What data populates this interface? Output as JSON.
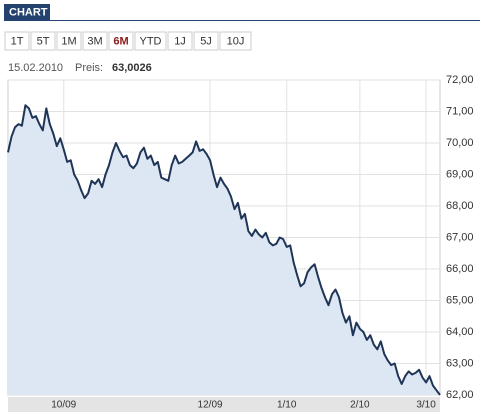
{
  "header": "CHART",
  "buttons": [
    "1T",
    "5T",
    "1M",
    "3M",
    "6M",
    "YTD",
    "1J",
    "5J",
    "10J"
  ],
  "selected_button": 4,
  "info": {
    "date": "15.02.2010",
    "price_label": "Preis:",
    "price": "63,0026"
  },
  "chart_data": {
    "type": "area",
    "color": "#1f3557",
    "fill": "#dde6f3",
    "categories": [
      null,
      null,
      null,
      null,
      null,
      null,
      null,
      null,
      null,
      null,
      null,
      null,
      null,
      null,
      null,
      null,
      "10/09",
      null,
      null,
      null,
      null,
      null,
      null,
      null,
      null,
      null,
      null,
      null,
      null,
      null,
      null,
      null,
      null,
      null,
      null,
      null,
      null,
      null,
      null,
      null,
      null,
      null,
      null,
      null,
      null,
      null,
      null,
      null,
      null,
      null,
      null,
      null,
      null,
      null,
      null,
      null,
      null,
      null,
      "12/09",
      null,
      null,
      null,
      null,
      null,
      null,
      null,
      null,
      null,
      null,
      null,
      null,
      null,
      null,
      null,
      null,
      null,
      null,
      null,
      null,
      null,
      "1/10",
      null,
      null,
      null,
      null,
      null,
      null,
      null,
      null,
      null,
      null,
      null,
      null,
      null,
      null,
      null,
      null,
      null,
      null,
      null,
      null,
      "2/10",
      null,
      null,
      null,
      null,
      null,
      null,
      null,
      null,
      null,
      null,
      null,
      null,
      null,
      null,
      null,
      null,
      null,
      null,
      "3/10",
      null,
      null,
      null,
      null
    ],
    "values": [
      69.7,
      70.2,
      70.5,
      70.6,
      70.55,
      71.2,
      71.1,
      70.8,
      70.85,
      70.6,
      70.4,
      71.1,
      70.6,
      70.3,
      69.9,
      70.15,
      69.8,
      69.4,
      69.45,
      69.0,
      68.8,
      68.5,
      68.25,
      68.4,
      68.8,
      68.7,
      68.85,
      68.6,
      69.0,
      69.3,
      69.7,
      70.0,
      69.75,
      69.55,
      69.6,
      69.3,
      69.2,
      69.35,
      69.7,
      69.85,
      69.5,
      69.6,
      69.3,
      69.4,
      68.9,
      68.85,
      68.8,
      69.3,
      69.6,
      69.35,
      69.4,
      69.5,
      69.6,
      69.7,
      70.05,
      69.75,
      69.8,
      69.65,
      69.45,
      69.0,
      68.6,
      68.9,
      68.7,
      68.55,
      68.3,
      67.9,
      68.1,
      67.6,
      67.75,
      67.2,
      67.05,
      67.25,
      67.1,
      67.0,
      67.15,
      66.85,
      66.75,
      66.8,
      67.0,
      66.95,
      66.7,
      66.75,
      66.2,
      65.8,
      65.45,
      65.55,
      65.9,
      66.05,
      66.15,
      65.75,
      65.4,
      65.1,
      64.85,
      65.2,
      65.35,
      65.1,
      64.6,
      64.3,
      64.5,
      63.9,
      64.3,
      64.1,
      64.0,
      63.75,
      63.9,
      63.6,
      63.45,
      63.7,
      63.3,
      63.1,
      62.95,
      63.0,
      62.6,
      62.35,
      62.6,
      62.75,
      62.65,
      62.7,
      62.8,
      62.55,
      62.4,
      62.6,
      62.3,
      62.15,
      62.0
    ],
    "ylim": [
      62,
      72
    ],
    "yticks": [
      {
        "value": 62,
        "label": "62,00"
      },
      {
        "value": 63,
        "label": "63,00"
      },
      {
        "value": 64,
        "label": "64,00"
      },
      {
        "value": 65,
        "label": "65,00"
      },
      {
        "value": 66,
        "label": "66,00"
      },
      {
        "value": 67,
        "label": "67,00"
      },
      {
        "value": 68,
        "label": "68,00"
      },
      {
        "value": 69,
        "label": "69,00"
      },
      {
        "value": 70,
        "label": "70,00"
      },
      {
        "value": 71,
        "label": "71,00"
      },
      {
        "value": 72,
        "label": "72,00"
      }
    ],
    "grid": true
  }
}
